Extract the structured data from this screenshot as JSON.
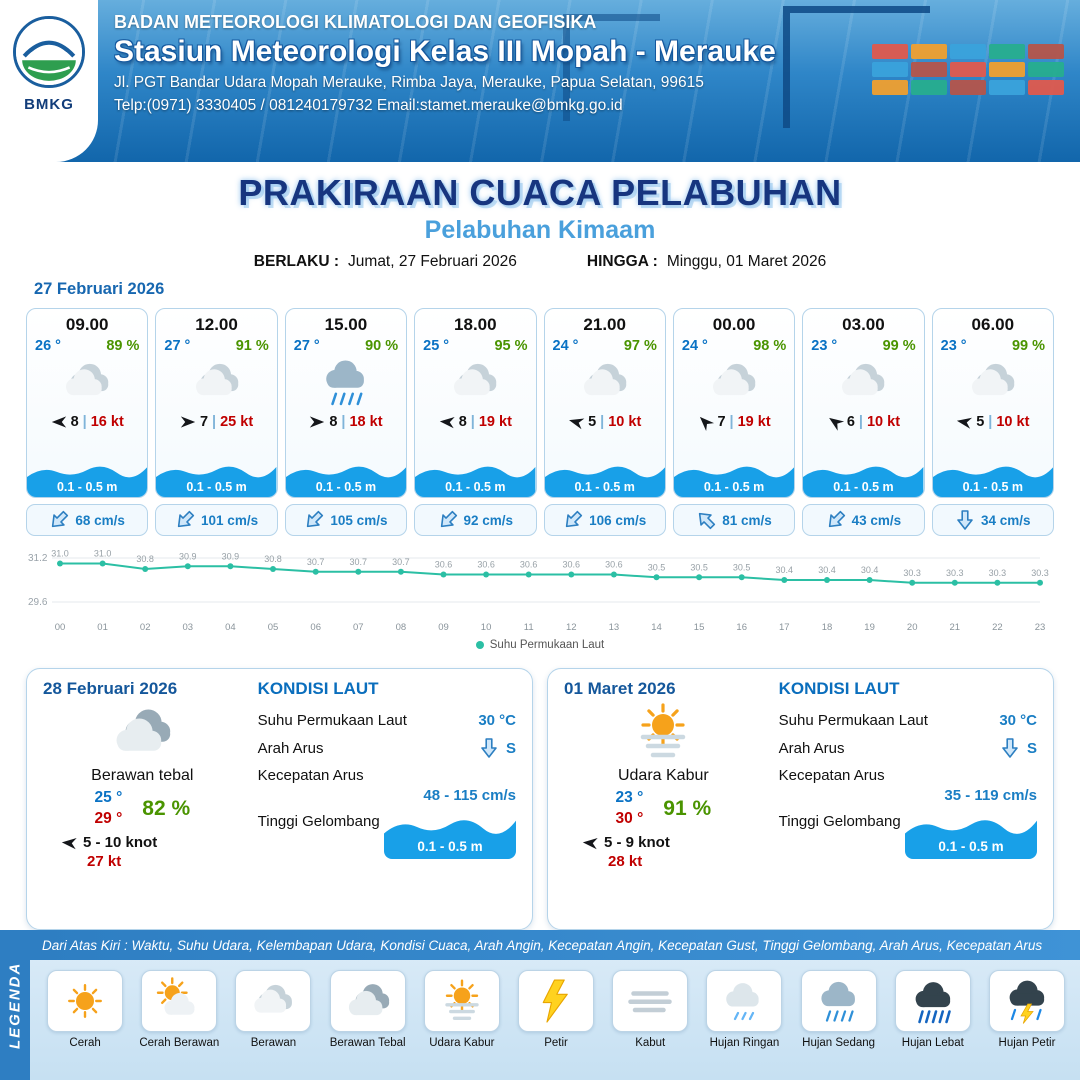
{
  "header": {
    "logo_text": "BMKG",
    "org": "BADAN METEOROLOGI KLIMATOLOGI DAN GEOFISIKA",
    "station": "Stasiun Meteorologi Kelas III Mopah - Merauke",
    "address": "Jl. PGT Bandar Udara Mopah Merauke, Rimba Jaya, Merauke, Papua Selatan, 99615",
    "contact": "Telp:(0971) 3330405 / 081240179732  Email:stamet.merauke@bmkg.go.id"
  },
  "title": {
    "main": "PRAKIRAAN CUACA PELABUHAN",
    "subtitle": "Pelabuhan Kimaam",
    "valid_label": "BERLAKU :",
    "valid_value": "Jumat, 27 Februari 2026",
    "until_label": "HINGGA :",
    "until_value": "Minggu, 01 Maret 2026"
  },
  "forecast": {
    "date": "27 Februari 2026",
    "divider": "|",
    "cards": [
      {
        "time": "09.00",
        "temp": "26 °",
        "humidity": "89 %",
        "icon": "cloud",
        "wind": "8",
        "gust": "16 kt",
        "wave": "0.1 - 0.5 m",
        "current": "68 cm/s",
        "wind_deg": 180,
        "current_deg": 135
      },
      {
        "time": "12.00",
        "temp": "27 °",
        "humidity": "91 %",
        "icon": "cloud",
        "wind": "7",
        "gust": "25 kt",
        "wave": "0.1 - 0.5 m",
        "current": "101 cm/s",
        "wind_deg": 0,
        "current_deg": 135
      },
      {
        "time": "15.00",
        "temp": "27 °",
        "humidity": "90 %",
        "icon": "rain-medium",
        "wind": "8",
        "gust": "18 kt",
        "wave": "0.1 - 0.5 m",
        "current": "105 cm/s",
        "wind_deg": 0,
        "current_deg": 135
      },
      {
        "time": "18.00",
        "temp": "25 °",
        "humidity": "95 %",
        "icon": "cloud",
        "wind": "8",
        "gust": "19 kt",
        "wave": "0.1 - 0.5 m",
        "current": "92 cm/s",
        "wind_deg": 185,
        "current_deg": 135
      },
      {
        "time": "21.00",
        "temp": "24 °",
        "humidity": "97 %",
        "icon": "cloud",
        "wind": "5",
        "gust": "10 kt",
        "wave": "0.1 - 0.5 m",
        "current": "106 cm/s",
        "wind_deg": 195,
        "current_deg": 135
      },
      {
        "time": "00.00",
        "temp": "24 °",
        "humidity": "98 %",
        "icon": "cloud",
        "wind": "7",
        "gust": "19 kt",
        "wave": "0.1 - 0.5 m",
        "current": "81 cm/s",
        "wind_deg": 225,
        "current_deg": 225
      },
      {
        "time": "03.00",
        "temp": "23 °",
        "humidity": "99 %",
        "icon": "cloud",
        "wind": "6",
        "gust": "10 kt",
        "wave": "0.1 - 0.5 m",
        "current": "43 cm/s",
        "wind_deg": 215,
        "current_deg": 135
      },
      {
        "time": "06.00",
        "temp": "23 °",
        "humidity": "99 %",
        "icon": "cloud",
        "wind": "5",
        "gust": "10 kt",
        "wave": "0.1 - 0.5 m",
        "current": "34 cm/s",
        "wind_deg": 190,
        "current_deg": 90
      }
    ]
  },
  "chart_data": {
    "type": "line",
    "legend": "Suhu Permukaan Laut",
    "x": [
      "00",
      "01",
      "02",
      "03",
      "04",
      "05",
      "06",
      "07",
      "08",
      "09",
      "10",
      "11",
      "12",
      "13",
      "14",
      "15",
      "16",
      "17",
      "18",
      "19",
      "20",
      "21",
      "22",
      "23"
    ],
    "values": [
      31.0,
      31.0,
      30.8,
      30.9,
      30.9,
      30.8,
      30.7,
      30.7,
      30.7,
      30.6,
      30.6,
      30.6,
      30.6,
      30.6,
      30.5,
      30.5,
      30.5,
      30.4,
      30.4,
      30.4,
      30.3,
      30.3,
      30.3,
      30.3
    ],
    "ylim": [
      29.6,
      31.2
    ],
    "yticks": [
      "31.2",
      "29.6"
    ],
    "color": "#2bbfa4",
    "xlabel": "",
    "ylabel": ""
  },
  "daily": [
    {
      "date": "28 Februari 2026",
      "icon": "cloud-thick",
      "condition": "Berawan tebal",
      "temp_min": "25 °",
      "temp_max": "29 °",
      "humidity": "82 %",
      "wind": "5  - 10 knot",
      "gust": "27 kt",
      "wind_deg": 185,
      "sea": {
        "title": "KONDISI LAUT",
        "sst_label": "Suhu Permukaan Laut",
        "sst": "30 °C",
        "dir_label": "Arah Arus",
        "dir": "S",
        "dir_deg": 90,
        "speed_label": "Kecepatan Arus",
        "speed": "48 - 115 cm/s",
        "wave_label": "Tinggi Gelombang",
        "wave": "0.1 - 0.5 m"
      }
    },
    {
      "date": "01 Maret 2026",
      "icon": "haze-sun",
      "condition": "Udara Kabur",
      "temp_min": "23 °",
      "temp_max": "30 °",
      "humidity": "91 %",
      "wind": "5  - 9 knot",
      "gust": "28 kt",
      "wind_deg": 185,
      "sea": {
        "title": "KONDISI LAUT",
        "sst_label": "Suhu Permukaan Laut",
        "sst": "30 °C",
        "dir_label": "Arah Arus",
        "dir": "S",
        "dir_deg": 90,
        "speed_label": "Kecepatan Arus",
        "speed": "35 - 119 cm/s",
        "wave_label": "Tinggi Gelombang",
        "wave": "0.1 - 0.5 m"
      }
    }
  ],
  "legend": {
    "title": "LEGENDA",
    "description": "Dari Atas Kiri : Waktu, Suhu Udara, Kelembapan Udara, Kondisi Cuaca, Arah Angin, Kecepatan Angin, Kecepatan Gust, Tinggi Gelombang, Arah Arus, Kecepatan Arus",
    "items": [
      {
        "label": "Cerah",
        "icon": "sun"
      },
      {
        "label": "Cerah Berawan",
        "icon": "sun-cloud"
      },
      {
        "label": "Berawan",
        "icon": "cloud"
      },
      {
        "label": "Berawan Tebal",
        "icon": "cloud-thick"
      },
      {
        "label": "Udara Kabur",
        "icon": "haze-sun"
      },
      {
        "label": "Petir",
        "icon": "lightning"
      },
      {
        "label": "Kabut",
        "icon": "fog"
      },
      {
        "label": "Hujan Ringan",
        "icon": "rain-light"
      },
      {
        "label": "Hujan Sedang",
        "icon": "rain-medium"
      },
      {
        "label": "Hujan Lebat",
        "icon": "rain-heavy"
      },
      {
        "label": "Hujan Petir",
        "icon": "storm"
      }
    ]
  },
  "colors": {
    "accent_blue": "#1767b0",
    "wave_blue": "#18a0e8",
    "temp_blue": "#0a72c4",
    "humidity_green": "#4a9400",
    "gust_red": "#c00000",
    "sst_teal": "#2bbfa4"
  }
}
